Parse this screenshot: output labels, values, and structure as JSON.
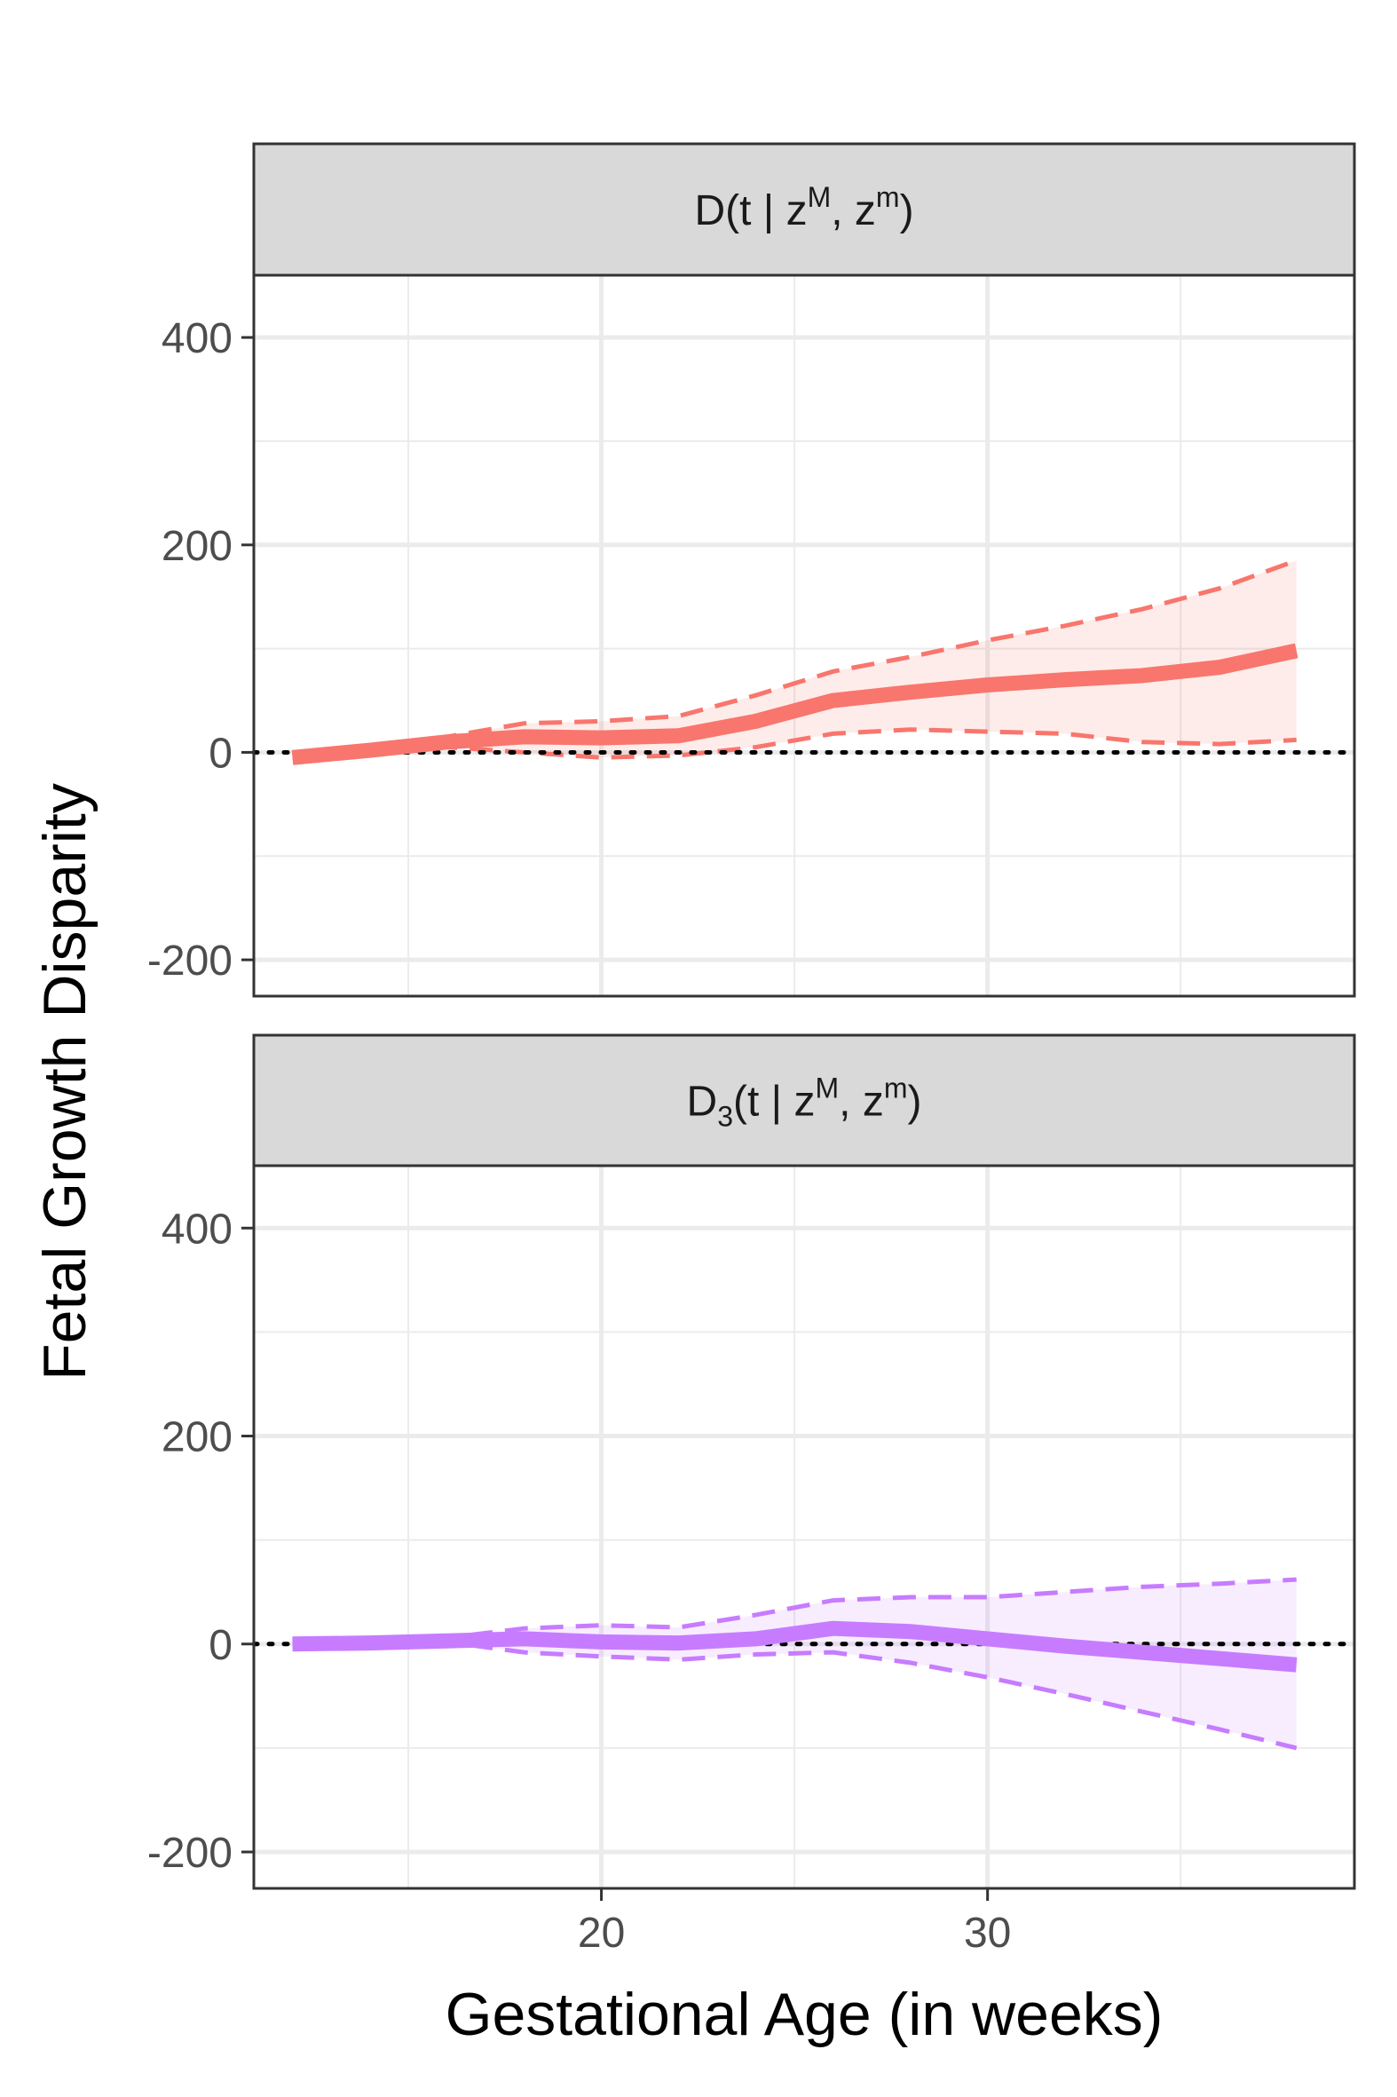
{
  "chart_data": {
    "type": "line",
    "xlabel": "Gestational Age (in weeks)",
    "ylabel": "Fetal Growth Disparity",
    "xlim": [
      11,
      39.5
    ],
    "ylim": [
      -235,
      460
    ],
    "x_ticks": [
      20,
      30
    ],
    "y_ticks": [
      -200,
      0,
      200,
      400
    ],
    "x_minor": [
      15,
      25,
      35
    ],
    "y_minor": [
      -100,
      100,
      300
    ],
    "grid": true,
    "reference_line": {
      "y": 0,
      "style": "dotted"
    },
    "panels": [
      {
        "strip": {
          "base": "D",
          "subscript": "",
          "args": "(t | z",
          "sup1": "M",
          "mid": ",  z",
          "sup2": "m",
          "close": ")"
        },
        "color": "#F8766D",
        "x": [
          12,
          14,
          16,
          18,
          20,
          22,
          24,
          26,
          28,
          30,
          32,
          34,
          36,
          38
        ],
        "estimate": [
          -5,
          2,
          10,
          15,
          14,
          16,
          30,
          50,
          58,
          65,
          70,
          74,
          82,
          98
        ],
        "lower": [
          -5,
          0,
          5,
          0,
          -5,
          -3,
          5,
          18,
          22,
          20,
          18,
          10,
          8,
          12
        ],
        "upper": [
          0,
          5,
          15,
          28,
          30,
          35,
          55,
          78,
          92,
          108,
          122,
          138,
          158,
          185
        ]
      },
      {
        "strip": {
          "base": "D",
          "subscript": "3",
          "args": "(t | z",
          "sup1": "M",
          "mid": ",  z",
          "sup2": "m",
          "close": ")"
        },
        "color": "#C77CFF",
        "x": [
          12,
          14,
          16,
          18,
          20,
          22,
          24,
          26,
          28,
          30,
          32,
          34,
          36,
          38
        ],
        "estimate": [
          0,
          1,
          3,
          5,
          2,
          1,
          5,
          15,
          12,
          5,
          -2,
          -8,
          -14,
          -20
        ],
        "lower": [
          0,
          0,
          2,
          -8,
          -12,
          -15,
          -10,
          -8,
          -18,
          -32,
          -48,
          -65,
          -82,
          -100
        ],
        "upper": [
          0,
          2,
          6,
          15,
          18,
          16,
          28,
          42,
          45,
          45,
          50,
          55,
          58,
          62
        ]
      }
    ]
  }
}
